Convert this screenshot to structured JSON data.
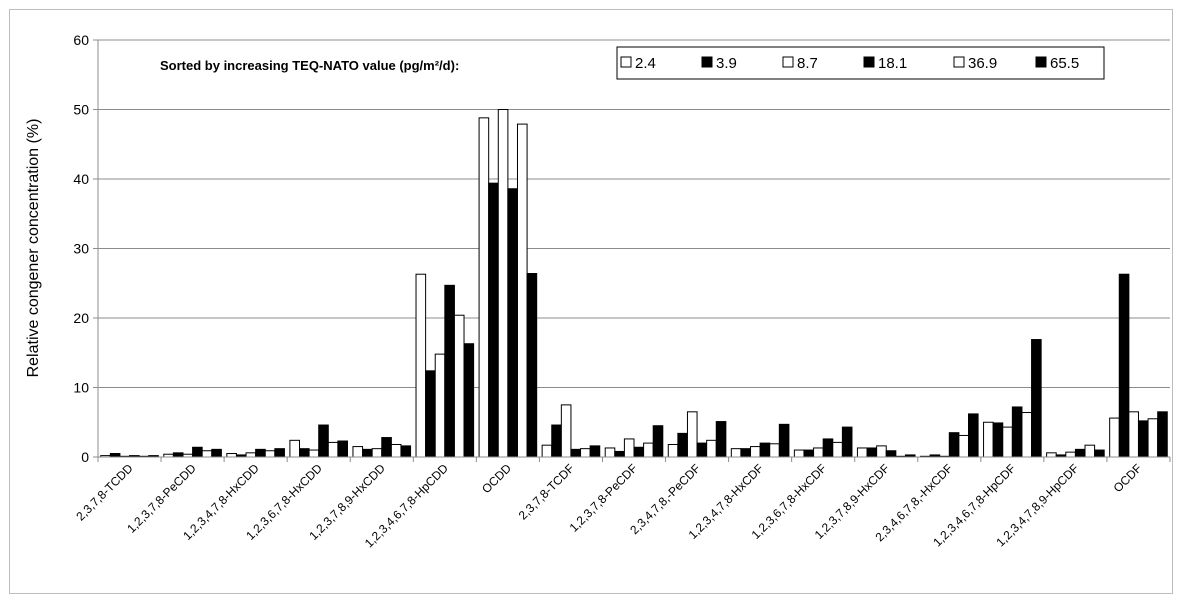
{
  "chart_data": {
    "type": "bar",
    "title": "",
    "annotation": "Sorted by increasing TEQ-NATO value (pg/m²/d):",
    "xlabel": "",
    "ylabel": "Relative congener concentration (%)",
    "ylim": [
      0,
      60
    ],
    "yticks": [
      "0",
      "10",
      "20",
      "30",
      "40",
      "50",
      "60"
    ],
    "grid": true,
    "legend_position": "top-right",
    "categories": [
      "2,3,7,8-TCDD",
      "1,2,3,7,8-PeCDD",
      "1,2,3,4,7,8-HxCDD",
      "1,2,3,6,7,8-HxCDD",
      "1,2,3,7,8,9-HxCDD",
      "1,2,3,4,6,7,8-HpCDD",
      "OCDD",
      "2,3,7,8-TCDF",
      "1,2,3,7,8-PeCDF",
      "2,3,4,7,8,-PeCDF",
      "1,2,3,4,7,8-HxCDF",
      "1,2,3,6,7,8-HxCDF",
      "1,2,3,7,8,9-HxCDF",
      "2,3,4,6,7,8,-HxCDF",
      "1,2,3,4,6,7,8-HpCDF",
      "1,2,3,4,7,8,9-HpCDF",
      "OCDF"
    ],
    "series": [
      {
        "name": "2.4",
        "color": "#ffffff",
        "values": [
          0.2,
          0.4,
          0.5,
          2.4,
          1.5,
          26.3,
          48.8,
          1.7,
          1.3,
          1.8,
          1.2,
          1.0,
          1.3,
          0.1,
          5.0,
          0.6,
          5.6
        ]
      },
      {
        "name": "3.9",
        "color": "#000000",
        "values": [
          0.5,
          0.6,
          0.3,
          1.2,
          1.1,
          12.4,
          39.4,
          4.6,
          0.8,
          3.4,
          1.2,
          1.0,
          1.3,
          0.3,
          4.9,
          0.3,
          26.3
        ]
      },
      {
        "name": "8.7",
        "color": "#ffffff",
        "values": [
          0.1,
          0.4,
          0.6,
          1.0,
          1.2,
          14.8,
          50.0,
          7.5,
          2.6,
          6.5,
          1.5,
          1.3,
          1.6,
          0.1,
          4.3,
          0.7,
          6.5
        ]
      },
      {
        "name": "18.1",
        "color": "#000000",
        "values": [
          0.2,
          1.4,
          1.1,
          4.6,
          2.8,
          24.7,
          38.6,
          1.1,
          1.4,
          2.0,
          2.0,
          2.6,
          0.9,
          3.5,
          7.2,
          1.1,
          5.2
        ]
      },
      {
        "name": "36.9",
        "color": "#ffffff",
        "values": [
          0.1,
          0.9,
          0.9,
          2.1,
          1.8,
          20.4,
          47.9,
          1.2,
          2.0,
          2.4,
          1.9,
          2.1,
          0.1,
          3.1,
          6.4,
          1.7,
          5.5
        ]
      },
      {
        "name": "65.5",
        "color": "#000000",
        "values": [
          0.2,
          1.1,
          1.2,
          2.3,
          1.6,
          16.3,
          26.4,
          1.6,
          4.5,
          5.1,
          4.7,
          4.3,
          0.3,
          6.2,
          16.9,
          1.0,
          6.5
        ]
      }
    ]
  }
}
